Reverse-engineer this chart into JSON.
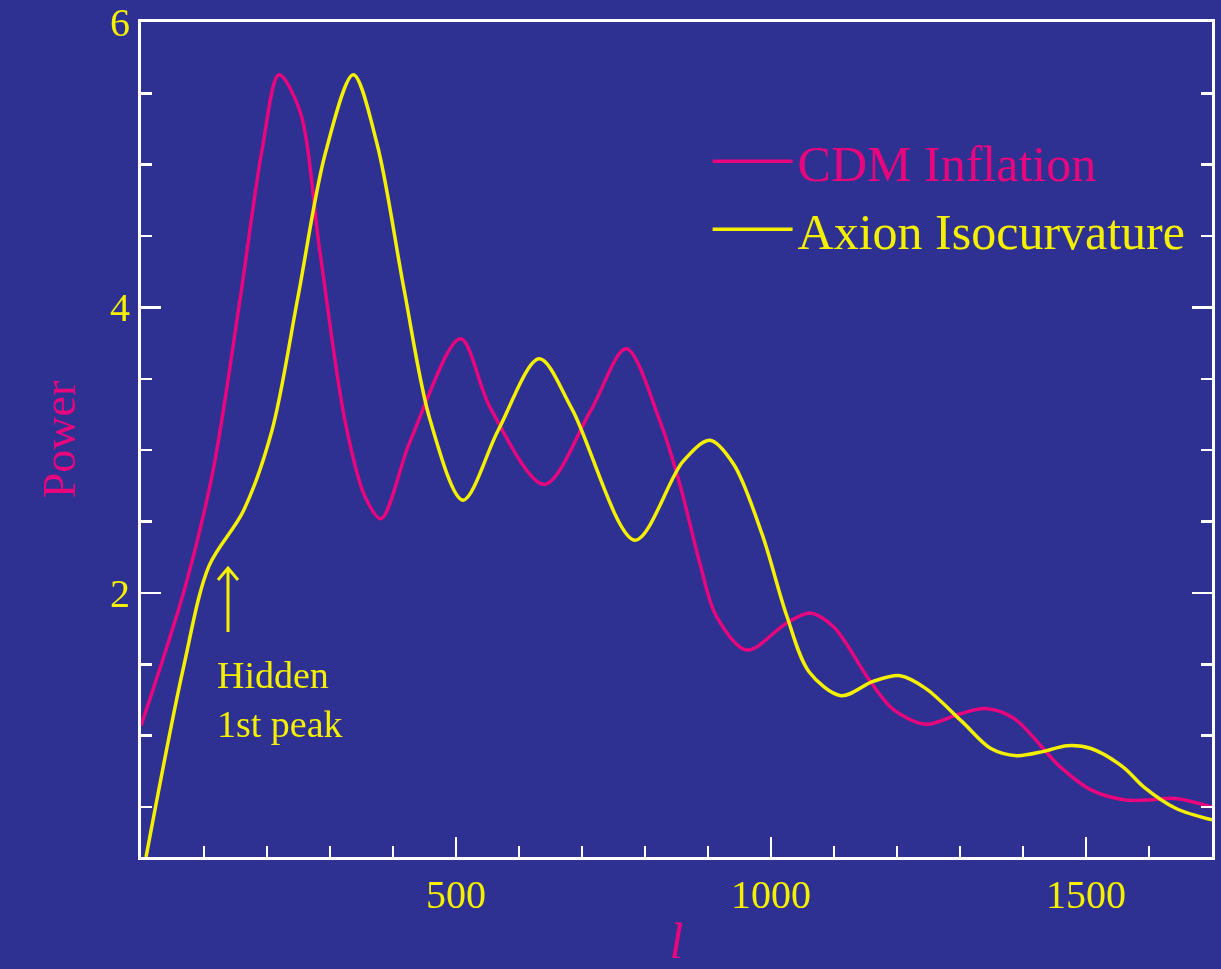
{
  "chart_data": {
    "type": "line",
    "xlabel": "l",
    "ylabel": "Power",
    "xlim": [
      0,
      1700
    ],
    "ylim": [
      0.15,
      6
    ],
    "xticks": [
      {
        "value": 100,
        "label": null
      },
      {
        "value": 200,
        "label": null
      },
      {
        "value": 300,
        "label": null
      },
      {
        "value": 400,
        "label": null
      },
      500,
      {
        "value": 600,
        "label": null
      },
      {
        "value": 700,
        "label": null
      },
      {
        "value": 800,
        "label": null
      },
      {
        "value": 900,
        "label": null
      },
      1000,
      {
        "value": 1100,
        "label": null
      },
      {
        "value": 1200,
        "label": null
      },
      {
        "value": 1300,
        "label": null
      },
      {
        "value": 1400,
        "label": null
      },
      1500,
      {
        "value": 1600,
        "label": null
      }
    ],
    "yticks": [
      {
        "value": 0.5,
        "label": null
      },
      {
        "value": 1,
        "label": null
      },
      {
        "value": 1.5,
        "label": null
      },
      2,
      {
        "value": 2.5,
        "label": null
      },
      {
        "value": 3,
        "label": null
      },
      {
        "value": 3.5,
        "label": null
      },
      4,
      {
        "value": 4.5,
        "label": null
      },
      {
        "value": 5,
        "label": null
      },
      {
        "value": 5.5,
        "label": null
      },
      6
    ],
    "grid": false,
    "legend": "top right",
    "marker": "none",
    "line_style": "solid",
    "series": [
      {
        "name": "CDM Inflation",
        "color": "#e8067f",
        "x": [
          0,
          70,
          114,
          157,
          192,
          219,
          252,
          284,
          324,
          356,
          381,
          427,
          507,
          554,
          640,
          713,
          770,
          824,
          856,
          887,
          913,
          962,
          1025,
          1062,
          1100,
          1156,
          1195,
          1246,
          1298,
          1340,
          1386,
          1457,
          1508,
          1562,
          1598,
          1641,
          1700
        ],
        "values": [
          1.07,
          2.04,
          2.85,
          4.05,
          5.1,
          5.63,
          5.38,
          4.39,
          3.2,
          2.67,
          2.52,
          3.06,
          3.78,
          3.3,
          2.76,
          3.27,
          3.71,
          3.2,
          2.75,
          2.21,
          1.84,
          1.6,
          1.79,
          1.86,
          1.76,
          1.39,
          1.18,
          1.08,
          1.15,
          1.19,
          1.12,
          0.79,
          0.62,
          0.55,
          0.55,
          0.56,
          0.5
        ]
      },
      {
        "name": "Axion Isocurvature",
        "color": "#f5f000",
        "x": [
          8,
          67,
          108,
          162,
          208,
          249,
          292,
          337,
          375,
          417,
          459,
          511,
          567,
          632,
          684,
          784,
          860,
          903,
          941,
          986,
          1025,
          1060,
          1111,
          1162,
          1205,
          1246,
          1303,
          1349,
          1390,
          1433,
          1470,
          1508,
          1559,
          1592,
          1643,
          1700
        ],
        "values": [
          0.15,
          1.47,
          2.19,
          2.57,
          3.14,
          4.07,
          5.07,
          5.63,
          5.14,
          4.14,
          3.21,
          2.65,
          3.14,
          3.64,
          3.29,
          2.37,
          2.92,
          3.07,
          2.9,
          2.41,
          1.84,
          1.45,
          1.28,
          1.38,
          1.42,
          1.33,
          1.1,
          0.91,
          0.86,
          0.89,
          0.93,
          0.91,
          0.78,
          0.64,
          0.49,
          0.41
        ]
      }
    ],
    "annotations": [
      "Hidden\n1st peak"
    ]
  }
}
